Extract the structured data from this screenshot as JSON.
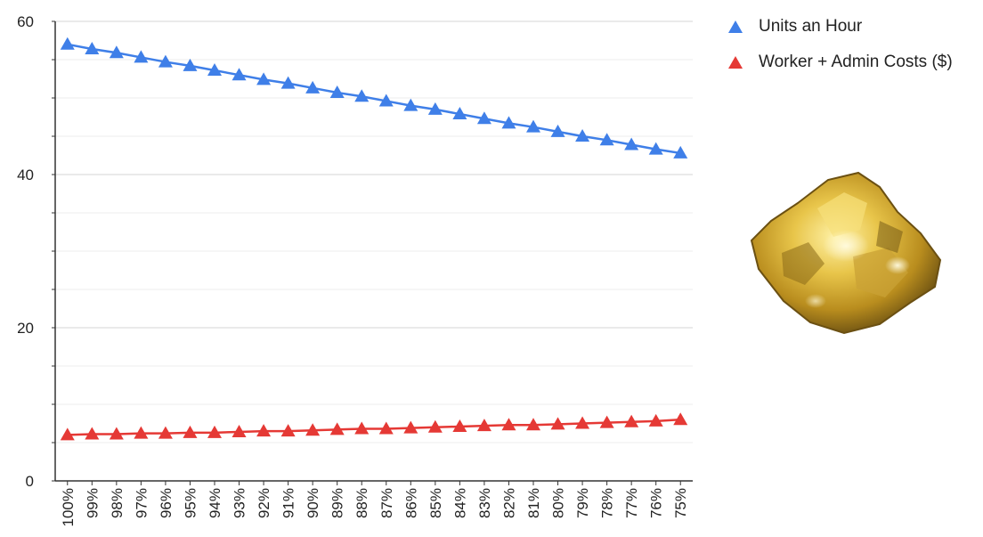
{
  "chart_data": {
    "type": "line",
    "categories": [
      "100%",
      "99%",
      "98%",
      "97%",
      "96%",
      "95%",
      "94%",
      "93%",
      "92%",
      "91%",
      "90%",
      "89%",
      "88%",
      "87%",
      "86%",
      "85%",
      "84%",
      "83%",
      "82%",
      "81%",
      "80%",
      "79%",
      "78%",
      "77%",
      "76%",
      "75%"
    ],
    "series": [
      {
        "name": "Units an Hour",
        "color": "#3f7fe8",
        "marker": "triangle",
        "values": [
          57.0,
          56.4,
          55.9,
          55.3,
          54.7,
          54.2,
          53.6,
          53.0,
          52.4,
          51.9,
          51.3,
          50.7,
          50.2,
          49.6,
          49.0,
          48.5,
          47.9,
          47.3,
          46.7,
          46.2,
          45.6,
          45.0,
          44.5,
          43.9,
          43.3,
          42.8
        ]
      },
      {
        "name": "Worker + Admin Costs ($)",
        "color": "#e53935",
        "marker": "triangle",
        "values": [
          6.0,
          6.1,
          6.1,
          6.2,
          6.2,
          6.3,
          6.3,
          6.4,
          6.5,
          6.5,
          6.6,
          6.7,
          6.8,
          6.8,
          6.9,
          7.0,
          7.1,
          7.2,
          7.3,
          7.3,
          7.4,
          7.5,
          7.6,
          7.7,
          7.8,
          8.0
        ]
      }
    ],
    "y_ticks": [
      0,
      20,
      40,
      60
    ],
    "ylim": [
      0,
      60
    ],
    "grid": true,
    "legend_position": "top-right"
  },
  "decoration": {
    "image": "gold-nugget"
  }
}
